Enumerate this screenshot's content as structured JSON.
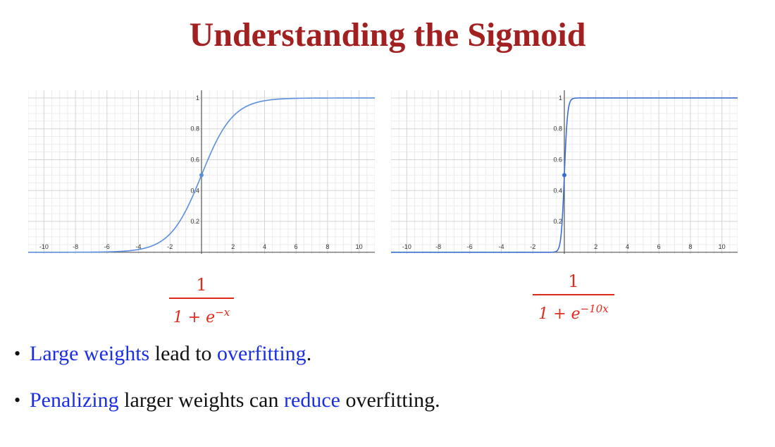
{
  "title": "Understanding the Sigmoid",
  "chart_data": [
    {
      "type": "line",
      "function": "1/(1+e^(-x))",
      "k": 1,
      "xlim": [
        -11,
        11
      ],
      "ylim": [
        -0.01,
        1.05
      ],
      "x_tick_labels": [
        "-10",
        "-8",
        "-6",
        "-4",
        "-2",
        "2",
        "4",
        "6",
        "8",
        "10"
      ],
      "y_tick_labels": [
        "0.2",
        "0.4",
        "0.6",
        "0.8",
        "1"
      ],
      "marked_point": {
        "x": 0,
        "y": 0.5
      },
      "grid": true,
      "line_color": "#5b8fde"
    },
    {
      "type": "line",
      "function": "1/(1+e^(-10x))",
      "k": 10,
      "xlim": [
        -11,
        11
      ],
      "ylim": [
        -0.01,
        1.05
      ],
      "x_tick_labels": [
        "-10",
        "-8",
        "-6",
        "-4",
        "-2",
        "2",
        "4",
        "6",
        "8",
        "10"
      ],
      "y_tick_labels": [
        "0.2",
        "0.4",
        "0.6",
        "0.8",
        "1"
      ],
      "marked_point": {
        "x": 0,
        "y": 0.5
      },
      "grid": true,
      "line_color": "#3a6ecf"
    }
  ],
  "formulas": {
    "left": {
      "numerator": "1",
      "denominator_base": "1 + e",
      "denominator_exponent": "−x"
    },
    "right": {
      "numerator": "1",
      "denominator_base": "1 + e",
      "denominator_exponent": "−10x"
    },
    "color": "#e02a1a"
  },
  "bullets": [
    {
      "bullet": "•",
      "segments": [
        {
          "text": "Large weights",
          "color": "blue"
        },
        {
          "text": " lead to ",
          "color": "black"
        },
        {
          "text": "overfitting",
          "color": "blue"
        },
        {
          "text": ".",
          "color": "black"
        }
      ]
    },
    {
      "bullet": "•",
      "segments": [
        {
          "text": "Penalizing",
          "color": "blue"
        },
        {
          "text": " larger weights can ",
          "color": "black"
        },
        {
          "text": "reduce",
          "color": "blue"
        },
        {
          "text": " overfitting.",
          "color": "black"
        }
      ]
    }
  ],
  "colors": {
    "title": "#a32020",
    "blue_text": "#1a2ee6",
    "black_text": "#111111",
    "grid_major": "#d4d4d4",
    "grid_minor": "#ececec",
    "axis": "#555555"
  }
}
